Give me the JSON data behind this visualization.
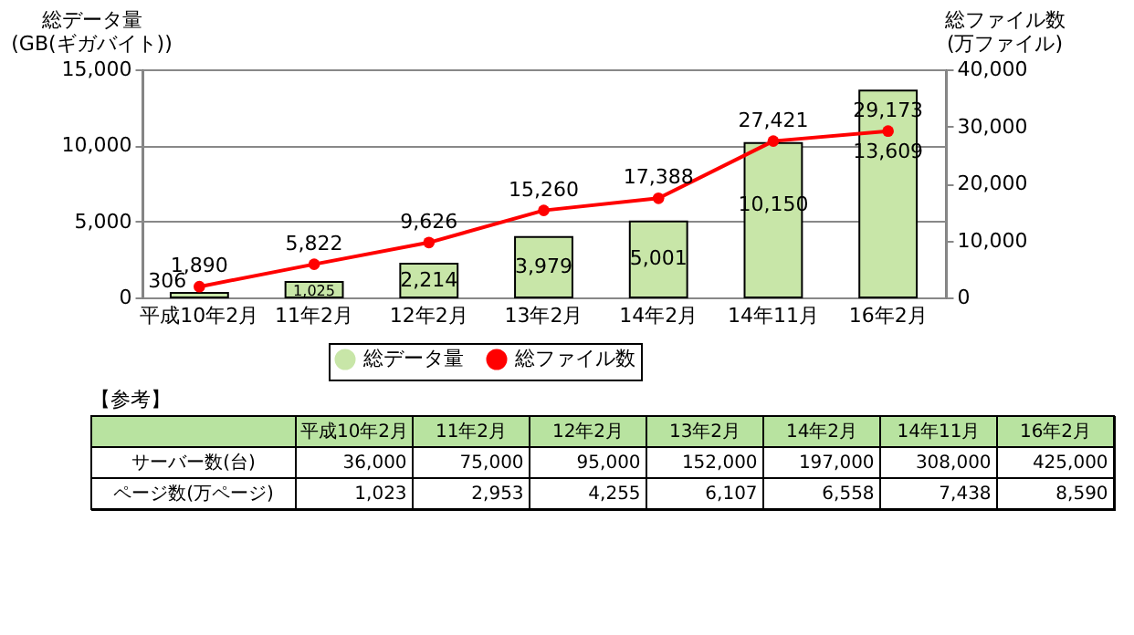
{
  "chart_data": [
    {
      "type": "bar",
      "ylabel": "総データ量\n(GB(ギガバイト))",
      "y2label": "総ファイル数\n(万ファイル)",
      "categories": [
        "平成10年2月",
        "11年2月",
        "12年2月",
        "13年2月",
        "14年2月",
        "14年11月",
        "16年2月"
      ],
      "series": [
        {
          "name": "総データ量",
          "type": "bar",
          "color": "#c8e6a8",
          "values": [
            306,
            1025,
            2214,
            3979,
            5001,
            10150,
            13609
          ],
          "value_labels": [
            "306",
            "1,025",
            "2,214",
            "3,979",
            "5,001",
            "10,150",
            "13,609"
          ]
        },
        {
          "name": "総ファイル数",
          "type": "line",
          "axis": "y2",
          "color": "#ff0000",
          "marker": "circle",
          "values": [
            1890,
            5822,
            9626,
            15260,
            17388,
            27421,
            29173
          ],
          "value_labels": [
            "1,890",
            "5,822",
            "9,626",
            "15,260",
            "17,388",
            "27,421",
            "29,173"
          ]
        }
      ],
      "ylim": [
        0,
        15000
      ],
      "yticks": [
        {
          "value": 0,
          "label": "0"
        },
        {
          "value": 5000,
          "label": "5,000"
        },
        {
          "value": 10000,
          "label": "10,000"
        },
        {
          "value": 15000,
          "label": "15,000"
        }
      ],
      "y2lim": [
        0,
        40000
      ],
      "y2ticks": [
        {
          "value": 0,
          "label": "0"
        },
        {
          "value": 10000,
          "label": "10,000"
        },
        {
          "value": 20000,
          "label": "20,000"
        },
        {
          "value": 30000,
          "label": "30,000"
        },
        {
          "value": 40000,
          "label": "40,000"
        }
      ],
      "grid": "y",
      "legend": "bottom"
    },
    {
      "type": "other",
      "title": "【参考】",
      "categories": [
        "平成10年2月",
        "11年2月",
        "12年2月",
        "13年2月",
        "14年2月",
        "14年11月",
        "16年2月"
      ],
      "series": [
        {
          "name": "サーバー数(台)",
          "values": [
            36000,
            75000,
            95000,
            152000,
            197000,
            308000,
            425000
          ],
          "value_labels": [
            "36,000",
            "75,000",
            "95,000",
            "152,000",
            "197,000",
            "308,000",
            "425,000"
          ]
        },
        {
          "name": "ページ数(万ページ)",
          "values": [
            1023,
            2953,
            4255,
            6107,
            6558,
            7438,
            8590
          ],
          "value_labels": [
            "1,023",
            "2,953",
            "4,255",
            "6,107",
            "6,558",
            "7,438",
            "8,590"
          ]
        }
      ]
    }
  ]
}
